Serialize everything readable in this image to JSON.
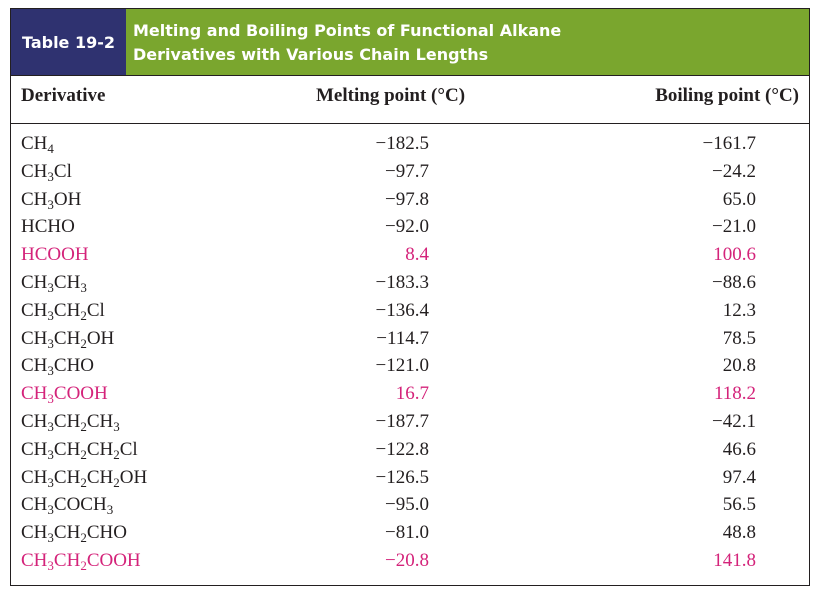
{
  "table": {
    "label": "Table 19-2",
    "title_line1": "Melting and Boiling Points of Functional Alkane",
    "title_line2": "Derivatives with Various Chain Lengths",
    "columns": [
      "Derivative",
      "Melting point (°C)",
      "Boiling point (°C)"
    ],
    "colors": {
      "header_bar": "#7aa62e",
      "label_box": "#2f3270",
      "highlight": "#d4237a"
    },
    "rows": [
      {
        "derivative": "CH4",
        "melting": "−182.5",
        "boiling": "−161.7",
        "highlight": false
      },
      {
        "derivative": "CH3Cl",
        "melting": "−97.7",
        "boiling": "−24.2",
        "highlight": false
      },
      {
        "derivative": "CH3OH",
        "melting": "−97.8",
        "boiling": "65.0",
        "highlight": false
      },
      {
        "derivative": "HCHO",
        "melting": "−92.0",
        "boiling": "−21.0",
        "highlight": false
      },
      {
        "derivative": "HCOOH",
        "melting": "8.4",
        "boiling": "100.6",
        "highlight": true
      },
      {
        "derivative": "CH3CH3",
        "melting": "−183.3",
        "boiling": "−88.6",
        "highlight": false
      },
      {
        "derivative": "CH3CH2Cl",
        "melting": "−136.4",
        "boiling": "12.3",
        "highlight": false
      },
      {
        "derivative": "CH3CH2OH",
        "melting": "−114.7",
        "boiling": "78.5",
        "highlight": false
      },
      {
        "derivative": "CH3CHO",
        "melting": "−121.0",
        "boiling": "20.8",
        "highlight": false
      },
      {
        "derivative": "CH3COOH",
        "melting": "16.7",
        "boiling": "118.2",
        "highlight": true
      },
      {
        "derivative": "CH3CH2CH3",
        "melting": "−187.7",
        "boiling": "−42.1",
        "highlight": false
      },
      {
        "derivative": "CH3CH2CH2Cl",
        "melting": "−122.8",
        "boiling": "46.6",
        "highlight": false
      },
      {
        "derivative": "CH3CH2CH2OH",
        "melting": "−126.5",
        "boiling": "97.4",
        "highlight": false
      },
      {
        "derivative": "CH3COCH3",
        "melting": "−95.0",
        "boiling": "56.5",
        "highlight": false
      },
      {
        "derivative": "CH3CH2CHO",
        "melting": "−81.0",
        "boiling": "48.8",
        "highlight": false
      },
      {
        "derivative": "CH3CH2COOH",
        "melting": "−20.8",
        "boiling": "141.8",
        "highlight": true
      }
    ]
  }
}
